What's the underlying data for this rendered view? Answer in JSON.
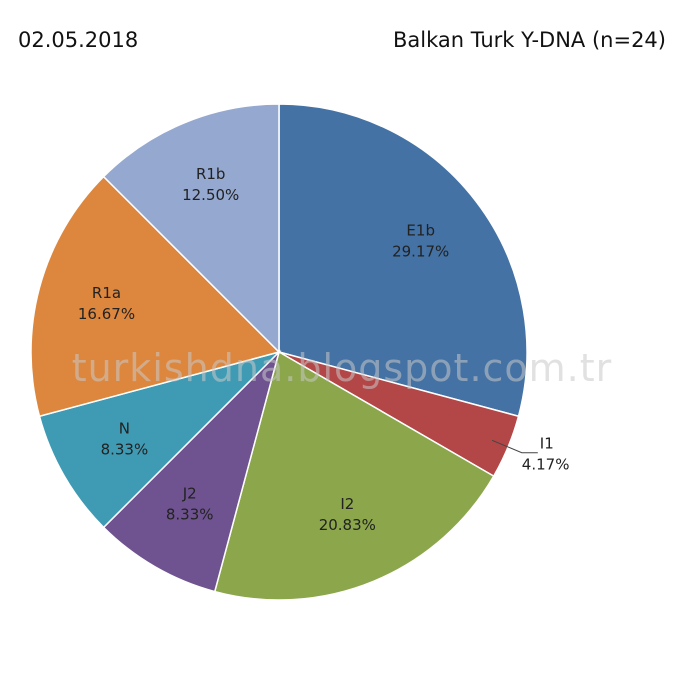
{
  "header": {
    "date": "02.05.2018",
    "title": "Balkan Turk Y-DNA (n=24)"
  },
  "watermark": "turkishdna.blogspot.com.tr",
  "chart_data": {
    "type": "pie",
    "title": "Balkan Turk Y-DNA (n=24)",
    "start_angle_deg": 0,
    "direction": "clockwise",
    "slices": [
      {
        "label": "E1b",
        "value": 29.17,
        "value_label": "29.17%",
        "color": "#4472A4"
      },
      {
        "label": "I1",
        "value": 4.17,
        "value_label": "4.17%",
        "color": "#B34646"
      },
      {
        "label": "I2",
        "value": 20.83,
        "value_label": "20.83%",
        "color": "#8BA64B"
      },
      {
        "label": "J2",
        "value": 8.33,
        "value_label": "8.33%",
        "color": "#6F5390"
      },
      {
        "label": "N",
        "value": 8.33,
        "value_label": "8.33%",
        "color": "#3F9BB4"
      },
      {
        "label": "R1a",
        "value": 16.67,
        "value_label": "16.67%",
        "color": "#DD873E"
      },
      {
        "label": "R1b",
        "value": 12.5,
        "value_label": "12.50%",
        "color": "#94A8D0"
      }
    ]
  }
}
